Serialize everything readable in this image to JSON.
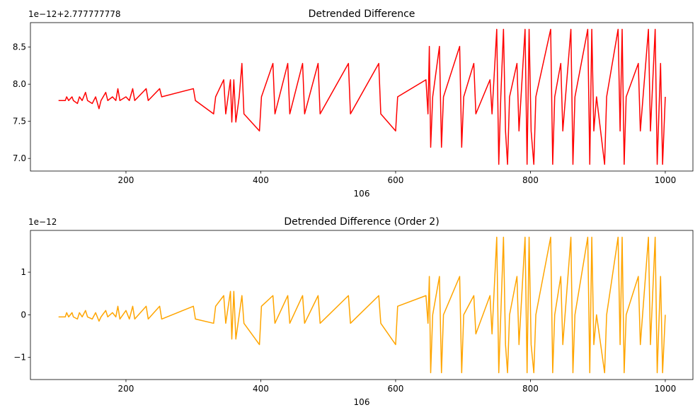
{
  "chart_data": [
    {
      "type": "line",
      "title": "Detrended Difference",
      "x_label": "106",
      "offset_text": "1e−12+2.777777778",
      "color": "#ff0000",
      "x": [
        100,
        110,
        112,
        115,
        120,
        122,
        128,
        131,
        135,
        140,
        143,
        150,
        155,
        160,
        163,
        170,
        173,
        180,
        185,
        188,
        191,
        200,
        205,
        210,
        213,
        230,
        233,
        250,
        253,
        300,
        303,
        330,
        333,
        345,
        348,
        355,
        357,
        360,
        363,
        368,
        372,
        375,
        398,
        401,
        418,
        421,
        440,
        443,
        462,
        465,
        485,
        488,
        530,
        533,
        575,
        578,
        600,
        603,
        645,
        648,
        650,
        652,
        655,
        665,
        668,
        671,
        695,
        698,
        701,
        716,
        719,
        740,
        743,
        750,
        753,
        756,
        760,
        763,
        766,
        769,
        780,
        783,
        792,
        795,
        798,
        801,
        805,
        808,
        830,
        833,
        836,
        845,
        848,
        860,
        863,
        866,
        885,
        888,
        891,
        894,
        898,
        910,
        913,
        930,
        933,
        936,
        939,
        942,
        960,
        963,
        975,
        978,
        985,
        988,
        993,
        996,
        1000
      ],
      "values": [
        7.78,
        7.78,
        7.83,
        7.78,
        7.83,
        7.78,
        7.74,
        7.83,
        7.78,
        7.89,
        7.78,
        7.74,
        7.83,
        7.67,
        7.78,
        7.89,
        7.78,
        7.83,
        7.78,
        7.94,
        7.78,
        7.83,
        7.78,
        7.94,
        7.78,
        7.94,
        7.78,
        7.94,
        7.83,
        7.94,
        7.78,
        7.6,
        7.83,
        8.06,
        7.6,
        8.06,
        7.49,
        8.06,
        7.49,
        7.83,
        8.28,
        7.6,
        7.37,
        7.83,
        8.28,
        7.6,
        8.28,
        7.6,
        8.28,
        7.6,
        8.28,
        7.6,
        8.28,
        7.6,
        8.28,
        7.6,
        7.37,
        7.83,
        8.06,
        7.6,
        8.51,
        7.15,
        7.83,
        8.51,
        7.15,
        7.83,
        8.51,
        7.15,
        7.83,
        8.28,
        7.6,
        8.06,
        7.6,
        8.74,
        6.92,
        7.83,
        8.74,
        7.37,
        6.92,
        7.83,
        8.28,
        7.37,
        8.74,
        6.92,
        8.74,
        7.37,
        6.92,
        7.83,
        8.74,
        6.92,
        7.83,
        8.28,
        7.37,
        8.74,
        6.92,
        7.83,
        8.74,
        6.92,
        8.74,
        7.37,
        7.83,
        6.92,
        7.83,
        8.74,
        7.37,
        8.74,
        6.92,
        7.83,
        8.28,
        7.37,
        8.74,
        7.37,
        8.74,
        6.92,
        8.28,
        6.92,
        7.83
      ],
      "xlim": [
        58.3,
        1041
      ],
      "ylim": [
        6.83,
        8.83
      ],
      "xticks": [
        200,
        400,
        600,
        800,
        1000
      ],
      "yticks": [
        {
          "value": 7.0,
          "label": "7.0"
        },
        7.5,
        {
          "value": 8.0,
          "label": "8.0"
        },
        8.5
      ]
    },
    {
      "type": "line",
      "title": "Detrended Difference (Order 2)",
      "x_label": "106",
      "offset_text": "1e−12",
      "color": "#ffa500",
      "x": [
        100,
        110,
        112,
        115,
        120,
        122,
        128,
        131,
        135,
        140,
        143,
        150,
        155,
        160,
        163,
        170,
        173,
        180,
        185,
        188,
        191,
        200,
        205,
        210,
        213,
        230,
        233,
        250,
        253,
        300,
        303,
        330,
        333,
        345,
        348,
        355,
        357,
        360,
        363,
        368,
        372,
        375,
        398,
        401,
        418,
        421,
        440,
        443,
        462,
        465,
        485,
        488,
        530,
        533,
        575,
        578,
        600,
        603,
        645,
        648,
        650,
        652,
        655,
        665,
        668,
        671,
        695,
        698,
        701,
        716,
        719,
        740,
        743,
        750,
        753,
        756,
        760,
        763,
        766,
        769,
        780,
        783,
        792,
        795,
        798,
        801,
        805,
        808,
        830,
        833,
        836,
        845,
        848,
        860,
        863,
        866,
        885,
        888,
        891,
        894,
        898,
        910,
        913,
        930,
        933,
        936,
        939,
        942,
        960,
        963,
        975,
        978,
        985,
        988,
        993,
        996,
        1000
      ],
      "values": [
        -0.05,
        -0.05,
        0.05,
        -0.05,
        0.05,
        -0.05,
        -0.1,
        0.05,
        -0.05,
        0.1,
        -0.05,
        -0.1,
        0.05,
        -0.15,
        -0.05,
        0.1,
        -0.05,
        0.05,
        -0.05,
        0.2,
        -0.1,
        0.1,
        -0.1,
        0.2,
        -0.1,
        0.2,
        -0.1,
        0.2,
        -0.1,
        0.2,
        -0.1,
        -0.2,
        0.2,
        0.45,
        -0.2,
        0.55,
        -0.57,
        0.55,
        -0.57,
        0,
        0.45,
        -0.2,
        -0.7,
        0.2,
        0.45,
        -0.2,
        0.45,
        -0.2,
        0.45,
        -0.2,
        0.45,
        -0.2,
        0.45,
        -0.2,
        0.45,
        -0.2,
        -0.7,
        0.2,
        0.45,
        -0.2,
        0.9,
        -1.36,
        0,
        0.9,
        -1.36,
        0,
        0.9,
        -1.36,
        0,
        0.45,
        -0.45,
        0.45,
        -0.45,
        1.82,
        -1.36,
        0,
        1.82,
        -0.7,
        -1.36,
        0,
        0.9,
        -0.7,
        1.82,
        -1.36,
        1.82,
        -0.7,
        -1.36,
        0,
        1.82,
        -1.36,
        0,
        0.9,
        -0.7,
        1.82,
        -1.36,
        0,
        1.82,
        -1.36,
        1.82,
        -0.7,
        0,
        -1.36,
        0,
        1.82,
        -0.7,
        1.82,
        -1.36,
        0,
        0.9,
        -0.7,
        1.82,
        -0.7,
        1.82,
        -1.36,
        0.9,
        -1.36,
        0
      ],
      "xlim": [
        58.3,
        1041
      ],
      "ylim": [
        -1.52,
        1.98
      ],
      "xticks": [
        200,
        400,
        600,
        800,
        1000
      ],
      "yticks": [
        {
          "value": -1,
          "label": "−1"
        },
        0,
        1
      ]
    }
  ]
}
